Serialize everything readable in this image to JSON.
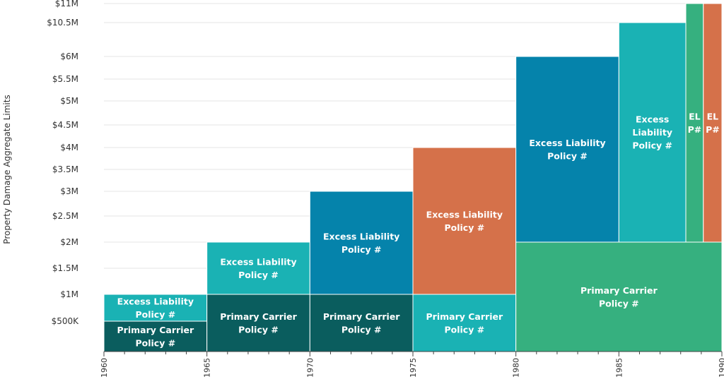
{
  "chart_data": {
    "type": "stacked-block",
    "ylabel": "Property Damage Aggregate Limits",
    "colors": {
      "dark_teal": "#0a5d5e",
      "teal": "#1ab2b4",
      "blue": "#0583ab",
      "orange": "#d5714a",
      "green": "#36b07f"
    },
    "y_ticks": [
      {
        "value": 500000,
        "label": "$500K"
      },
      {
        "value": 1000000,
        "label": "$1M"
      },
      {
        "value": 1500000,
        "label": "$1.5M"
      },
      {
        "value": 2000000,
        "label": "$2M"
      },
      {
        "value": 2500000,
        "label": "$2.5M"
      },
      {
        "value": 3000000,
        "label": "$3M"
      },
      {
        "value": 3500000,
        "label": "$3.5M"
      },
      {
        "value": 4000000,
        "label": "$4M"
      },
      {
        "value": 4500000,
        "label": "$4.5M"
      },
      {
        "value": 5000000,
        "label": "$5M"
      },
      {
        "value": 5500000,
        "label": "$5.5M"
      },
      {
        "value": 6000000,
        "label": "$6M"
      },
      {
        "value": 10500000,
        "label": "$10.5M"
      },
      {
        "value": 11000000,
        "label": "$11M"
      }
    ],
    "x_ticks": [
      "1960",
      "1965",
      "1970",
      "1975",
      "1980",
      "1985",
      "1990"
    ],
    "xlim": [
      1960,
      1990
    ],
    "blocks": [
      {
        "x0": 1960,
        "x1": 1965,
        "y0": 0,
        "y1": 500000,
        "color": "dark_teal",
        "lines": [
          "Primary Carrier",
          "Policy #"
        ]
      },
      {
        "x0": 1960,
        "x1": 1965,
        "y0": 500000,
        "y1": 1000000,
        "color": "teal",
        "lines": [
          "Excess Liability",
          "Policy #"
        ]
      },
      {
        "x0": 1965,
        "x1": 1970,
        "y0": 0,
        "y1": 1000000,
        "color": "dark_teal",
        "lines": [
          "Primary Carrier",
          "Policy #"
        ]
      },
      {
        "x0": 1965,
        "x1": 1970,
        "y0": 1000000,
        "y1": 2000000,
        "color": "teal",
        "lines": [
          "Excess Liability",
          "Policy #"
        ]
      },
      {
        "x0": 1970,
        "x1": 1975,
        "y0": 0,
        "y1": 1000000,
        "color": "dark_teal",
        "lines": [
          "Primary Carrier",
          "Policy #"
        ]
      },
      {
        "x0": 1970,
        "x1": 1975,
        "y0": 1000000,
        "y1": 3000000,
        "color": "blue",
        "lines": [
          "Excess Liability",
          "Policy #"
        ]
      },
      {
        "x0": 1975,
        "x1": 1980,
        "y0": 0,
        "y1": 1000000,
        "color": "teal",
        "lines": [
          "Primary Carrier",
          "Policy #"
        ]
      },
      {
        "x0": 1975,
        "x1": 1980,
        "y0": 1000000,
        "y1": 4000000,
        "color": "orange",
        "lines": [
          "Excess Liability",
          "Policy #"
        ]
      },
      {
        "x0": 1980,
        "x1": 1990,
        "y0": 0,
        "y1": 2000000,
        "color": "green",
        "lines": [
          "Primary Carrier",
          "Policy #"
        ]
      },
      {
        "x0": 1980,
        "x1": 1985,
        "y0": 2000000,
        "y1": 6000000,
        "color": "blue",
        "lines": [
          "Excess Liability",
          "Policy #"
        ]
      },
      {
        "x0": 1985,
        "x1": 1988.25,
        "y0": 2000000,
        "y1": 10500000,
        "color": "teal",
        "lines": [
          "Excess",
          "Liability",
          "Policy #"
        ]
      },
      {
        "x0": 1988.25,
        "x1": 1989.1,
        "y0": 2000000,
        "y1": 11000000,
        "color": "green",
        "lines": [
          "EL",
          "P#"
        ]
      },
      {
        "x0": 1989.1,
        "x1": 1990,
        "y0": 2000000,
        "y1": 11000000,
        "color": "orange",
        "lines": [
          "EL",
          "P#"
        ]
      }
    ]
  }
}
